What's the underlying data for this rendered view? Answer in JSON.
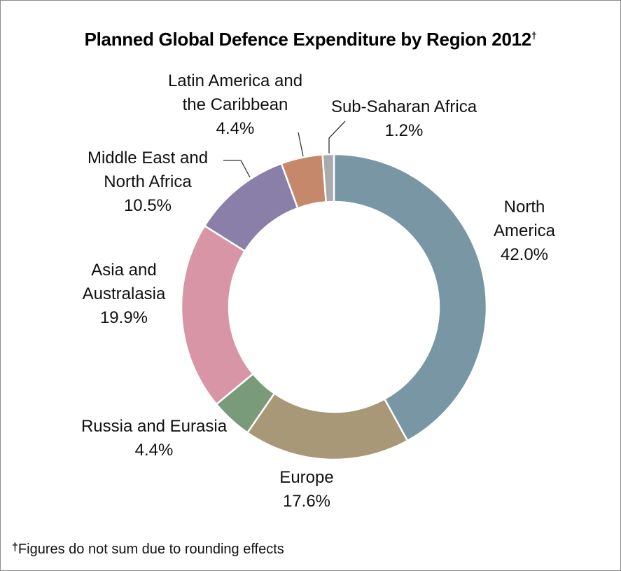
{
  "chart_data": {
    "type": "pie",
    "variant": "donut",
    "title": "Planned Global Defence Expenditure by Region 2012",
    "title_mark": "†",
    "unit": "%",
    "slices": [
      {
        "label": "North America",
        "value": 42.0,
        "value_label": "42.0%",
        "color": "#7896a4"
      },
      {
        "label": "Europe",
        "value": 17.6,
        "value_label": "17.6%",
        "color": "#a99877"
      },
      {
        "label": "Russia and Eurasia",
        "value": 4.4,
        "value_label": "4.4%",
        "color": "#7a9b79"
      },
      {
        "label": "Asia and\nAustralasia",
        "value": 19.9,
        "value_label": "19.9%",
        "color": "#d795a6"
      },
      {
        "label": "Middle East and\nNorth Africa",
        "value": 10.5,
        "value_label": "10.5%",
        "color": "#8a7fa9"
      },
      {
        "label": "Latin America and\nthe Caribbean",
        "value": 4.4,
        "value_label": "4.4%",
        "color": "#c6886b"
      },
      {
        "label": "Sub-Saharan Africa",
        "value": 1.2,
        "value_label": "1.2%",
        "color": "#a9aaad"
      }
    ],
    "start": "top",
    "direction": "clockwise",
    "footnote_mark": "†",
    "footnote": "Figures do not sum due to rounding effects"
  }
}
